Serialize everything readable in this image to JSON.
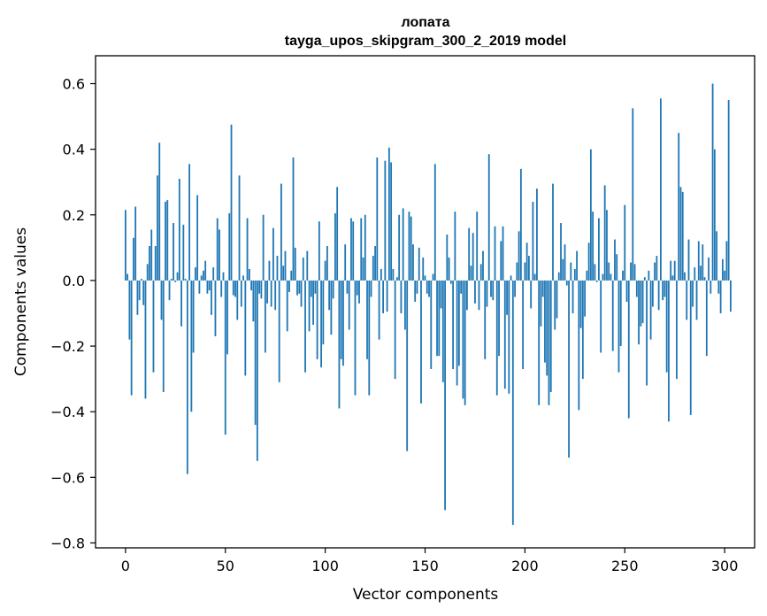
{
  "chart_data": {
    "type": "bar",
    "title": "лопата",
    "subtitle": "tayga_upos_skipgram_300_2_2019 model",
    "xlabel": "Vector components",
    "ylabel": "Components values",
    "xlim": [
      -15,
      315
    ],
    "ylim": [
      -0.815,
      0.685
    ],
    "xticks": [
      0,
      50,
      100,
      150,
      200,
      250,
      300
    ],
    "yticks": [
      -0.8,
      -0.6,
      -0.4,
      -0.2,
      0.0,
      0.2,
      0.4,
      0.6
    ],
    "ytick_labels": [
      "−0.8",
      "−0.6",
      "−0.4",
      "−0.2",
      "0.0",
      "0.2",
      "0.4",
      "0.6"
    ],
    "bar_color": "#1f77b4",
    "values": [
      0.215,
      0.02,
      -0.18,
      -0.35,
      0.13,
      0.225,
      -0.105,
      -0.06,
      0.005,
      -0.075,
      -0.36,
      0.05,
      0.105,
      0.155,
      -0.28,
      0.105,
      0.32,
      0.42,
      -0.12,
      -0.34,
      0.24,
      0.245,
      -0.06,
      0.005,
      0.175,
      -0.005,
      0.025,
      0.31,
      -0.14,
      0.17,
      0.005,
      -0.59,
      0.355,
      -0.4,
      -0.22,
      0.04,
      0.26,
      -0.04,
      0.015,
      0.03,
      0.06,
      -0.04,
      -0.03,
      -0.105,
      0.04,
      -0.17,
      0.19,
      0.155,
      -0.05,
      0.025,
      -0.47,
      -0.225,
      0.205,
      0.475,
      -0.045,
      -0.05,
      -0.12,
      0.32,
      -0.08,
      0.015,
      -0.29,
      0.19,
      0.035,
      -0.03,
      -0.125,
      -0.44,
      -0.55,
      -0.04,
      -0.055,
      0.2,
      -0.22,
      -0.07,
      0.06,
      -0.08,
      0.16,
      -0.09,
      0.075,
      -0.31,
      0.295,
      0.045,
      0.09,
      -0.155,
      -0.035,
      0.03,
      0.375,
      0.1,
      -0.045,
      -0.04,
      -0.08,
      0.07,
      -0.28,
      0.09,
      -0.155,
      -0.05,
      -0.135,
      -0.04,
      -0.24,
      0.18,
      -0.265,
      -0.195,
      0.06,
      0.105,
      -0.09,
      -0.165,
      -0.055,
      0.205,
      0.285,
      -0.39,
      -0.24,
      -0.26,
      0.11,
      -0.04,
      -0.15,
      0.19,
      0.18,
      -0.35,
      -0.045,
      -0.07,
      0.19,
      0.07,
      0.2,
      -0.24,
      -0.35,
      -0.05,
      0.075,
      0.105,
      0.375,
      -0.18,
      0.035,
      -0.1,
      0.365,
      -0.095,
      0.405,
      0.36,
      0.035,
      -0.3,
      0.01,
      0.2,
      -0.1,
      0.22,
      -0.15,
      -0.52,
      0.21,
      0.195,
      0.11,
      -0.065,
      -0.04,
      0.1,
      -0.375,
      0.07,
      0.015,
      -0.04,
      -0.05,
      -0.27,
      0.02,
      0.355,
      -0.23,
      -0.23,
      -0.085,
      -0.31,
      -0.7,
      0.14,
      0.07,
      -0.01,
      -0.27,
      0.21,
      -0.32,
      -0.26,
      -0.04,
      -0.36,
      -0.38,
      -0.09,
      0.16,
      0.045,
      0.145,
      -0.07,
      0.21,
      -0.09,
      0.05,
      0.09,
      -0.24,
      -0.08,
      0.385,
      -0.05,
      -0.06,
      0.165,
      -0.35,
      -0.23,
      0.12,
      0.165,
      -0.33,
      -0.105,
      -0.345,
      0.015,
      -0.745,
      -0.05,
      0.055,
      0.15,
      0.34,
      -0.27,
      0.055,
      0.115,
      0.075,
      -0.085,
      0.24,
      0.02,
      0.28,
      -0.38,
      -0.14,
      -0.05,
      -0.25,
      -0.29,
      -0.38,
      -0.34,
      0.295,
      -0.15,
      -0.115,
      0.025,
      0.175,
      0.065,
      0.11,
      -0.015,
      -0.54,
      0.055,
      -0.1,
      0.035,
      0.09,
      -0.395,
      -0.145,
      -0.3,
      -0.11,
      0.03,
      0.115,
      0.4,
      0.21,
      0.05,
      -0.005,
      0.19,
      -0.22,
      0.02,
      0.29,
      0.215,
      0.055,
      0.02,
      -0.215,
      0.125,
      0.08,
      -0.28,
      -0.2,
      0.03,
      0.23,
      -0.065,
      -0.42,
      0.055,
      0.525,
      0.05,
      -0.05,
      -0.195,
      -0.14,
      -0.13,
      0.01,
      -0.32,
      0.03,
      -0.18,
      -0.08,
      0.055,
      0.075,
      -0.09,
      0.555,
      -0.06,
      -0.05,
      -0.28,
      -0.43,
      0.06,
      0.015,
      0.06,
      -0.3,
      0.45,
      0.285,
      0.27,
      0.025,
      -0.12,
      0.125,
      -0.41,
      -0.08,
      0.04,
      -0.12,
      0.12,
      0.045,
      0.11,
      0.01,
      -0.23,
      0.07,
      -0.04,
      0.6,
      0.4,
      0.15,
      -0.04,
      -0.1,
      0.065,
      0.03,
      0.12,
      0.55,
      -0.095
    ]
  }
}
